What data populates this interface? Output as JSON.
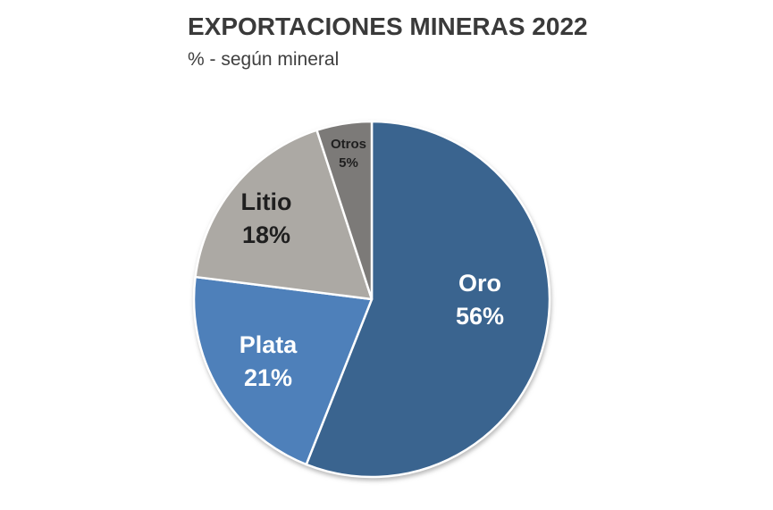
{
  "header": {
    "title": "EXPORTACIONES MINERAS 2022",
    "subtitle": "% - según mineral"
  },
  "chart_data": {
    "type": "pie",
    "title": "EXPORTACIONES MINERAS 2022",
    "subtitle": "% - según mineral",
    "unit": "%",
    "start_position": "12-o-clock",
    "direction": "clockwise",
    "legend": "none",
    "label_placement": "inside",
    "separator_color": "#ffffff",
    "categories": [
      "Oro",
      "Plata",
      "Litio",
      "Otros"
    ],
    "values": [
      56,
      21,
      18,
      5
    ],
    "slices": [
      {
        "label": "Oro",
        "value": 56,
        "display": "56%",
        "color": "#3a648f",
        "label_color": "#ffffff"
      },
      {
        "label": "Plata",
        "value": 21,
        "display": "21%",
        "color": "#4e80ba",
        "label_color": "#ffffff"
      },
      {
        "label": "Litio",
        "value": 18,
        "display": "18%",
        "color": "#aca9a4",
        "label_color": "#1f1f1f"
      },
      {
        "label": "Otros",
        "value": 5,
        "display": "5%",
        "color": "#7c7a78",
        "label_color": "#1f1f1f"
      }
    ]
  }
}
